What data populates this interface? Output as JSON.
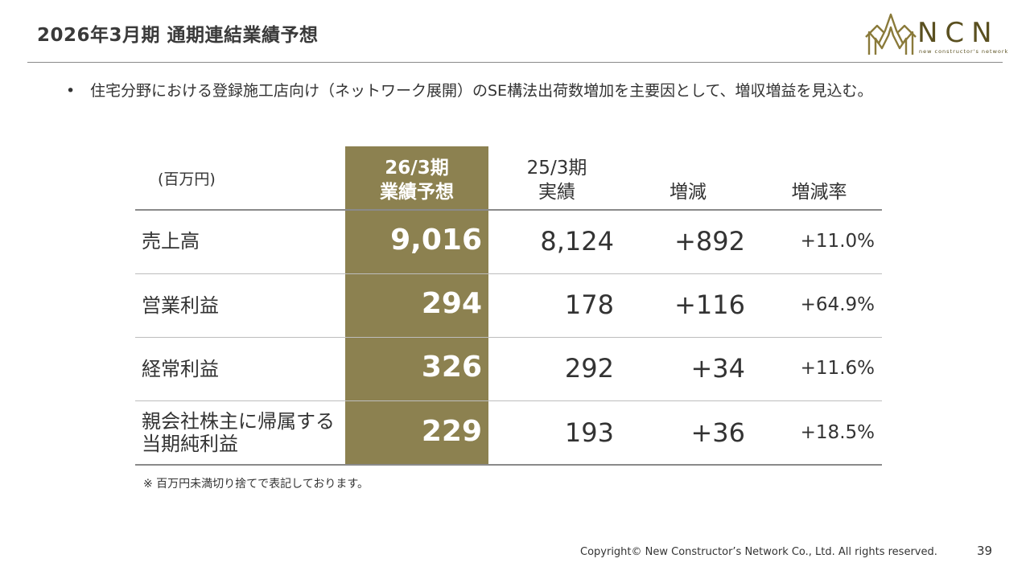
{
  "title": "2026年3月期 通期連結業績予想",
  "logo": {
    "text": "NCN",
    "subtext": "new constructor's network",
    "color": "#5a5020"
  },
  "bullet": {
    "marker": "•",
    "text": "住宅分野における登録施工店向け（ネットワーク展開）のSE構法出荷数増加を主要因として、増収増益を見込む。"
  },
  "table": {
    "unit": "(百万円)",
    "highlight_color": "#8c8150",
    "headers": {
      "forecast": [
        "26/3期",
        "業績予想"
      ],
      "actual": [
        "25/3期",
        "実績"
      ],
      "change": "増減",
      "rate": "増減率"
    },
    "rows": [
      {
        "label": [
          "売上高"
        ],
        "forecast": "9,016",
        "actual": "8,124",
        "change": "+892",
        "rate": "+11.0%"
      },
      {
        "label": [
          "営業利益"
        ],
        "forecast": "294",
        "actual": "178",
        "change": "+116",
        "rate": "+64.9%"
      },
      {
        "label": [
          "経常利益"
        ],
        "forecast": "326",
        "actual": "292",
        "change": "+34",
        "rate": "+11.6%"
      },
      {
        "label": [
          "親会社株主に帰属する",
          "当期純利益"
        ],
        "forecast": "229",
        "actual": "193",
        "change": "+36",
        "rate": "+18.5%"
      }
    ]
  },
  "note": "※ 百万円未満切り捨てで表記しております。",
  "footer": {
    "copyright": "Copyright© New Constructor’s Network Co., Ltd. All rights reserved.",
    "page_number": "39"
  }
}
